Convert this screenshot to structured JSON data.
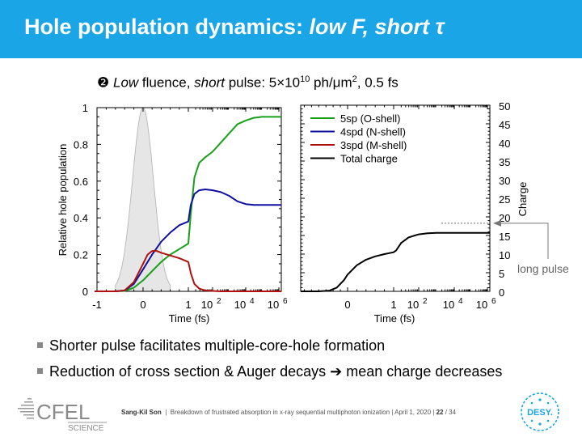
{
  "slide": {
    "title_main": "Hole population dynamics: ",
    "title_italic": "low F, short τ",
    "subtitle": {
      "marker": "❷",
      "low": "Low",
      "part1": " fluence, ",
      "short": "short",
      "part2": " pulse: 5×10",
      "exp": "10",
      "part3": " ph/μm",
      "exp2": "2",
      "part4": ", 0.5 fs"
    },
    "bullets": [
      "Shorter pulse facilitates multiple-core-hole formation",
      "Reduction of cross section & Auger decays ➔ mean charge decreases"
    ],
    "annotation": "long pulse",
    "footer": {
      "author": "Sang-Kil Son",
      "talk": "Breakdown of frustrated absorption in x-ray sequential multiphoton ionization",
      "date": "April 1, 2020",
      "page": "22",
      "total": "34"
    },
    "logos": {
      "cfel": "CFEL",
      "science": "SCIENCE",
      "desy": "DESY."
    }
  },
  "chart_data": [
    {
      "type": "line",
      "ylabel": "Relative hole population",
      "xlabel": "Time (fs)",
      "ylim": [
        0,
        1
      ],
      "yticks": [
        "0",
        "0.2",
        "0.4",
        "0.6",
        "0.8",
        "1"
      ],
      "xticks": [
        "-1",
        "0",
        "1",
        "10",
        "10",
        "10"
      ],
      "xtick_exps": [
        "",
        "",
        "",
        "2",
        "4",
        "6"
      ],
      "pulse": "grey shaded gaussian centered at t = 0",
      "series": [
        {
          "name": "5sp (O-shell)",
          "color": "#18a018",
          "x": [
            -1.05,
            -0.8,
            -0.6,
            -0.4,
            -0.2,
            0,
            0.2,
            0.4,
            0.6,
            0.8,
            1,
            1.1,
            1.25,
            1.45,
            1.7,
            2,
            2.5,
            3,
            3.5,
            4,
            4.5,
            5,
            5.5,
            6,
            6.3
          ],
          "y": [
            0,
            0,
            0,
            0.002,
            0.02,
            0.06,
            0.11,
            0.16,
            0.2,
            0.23,
            0.26,
            0.42,
            0.62,
            0.7,
            0.73,
            0.76,
            0.81,
            0.86,
            0.91,
            0.93,
            0.945,
            0.95,
            0.95,
            0.95,
            0.95
          ]
        },
        {
          "name": "4spd (N-shell)",
          "color": "#1010a0",
          "x": [
            -1.05,
            -0.8,
            -0.6,
            -0.4,
            -0.2,
            0,
            0.2,
            0.4,
            0.6,
            0.8,
            1,
            1.1,
            1.25,
            1.45,
            1.7,
            2,
            2.5,
            3,
            3.5,
            4,
            4.5,
            5,
            5.5,
            6,
            6.3
          ],
          "y": [
            0,
            0,
            0,
            0.005,
            0.04,
            0.12,
            0.2,
            0.27,
            0.32,
            0.36,
            0.38,
            0.47,
            0.53,
            0.55,
            0.555,
            0.55,
            0.54,
            0.52,
            0.49,
            0.475,
            0.47,
            0.47,
            0.47,
            0.47,
            0.47
          ]
        },
        {
          "name": "3spd (M-shell)",
          "color": "#b01010",
          "x": [
            -1.05,
            -0.8,
            -0.6,
            -0.4,
            -0.2,
            0,
            0.1,
            0.2,
            0.3,
            0.4,
            0.6,
            0.8,
            1,
            1.1,
            1.25,
            1.45,
            1.7,
            2,
            2.5,
            3,
            4,
            5,
            6,
            6.3
          ],
          "y": [
            0,
            0,
            0,
            0.005,
            0.05,
            0.15,
            0.2,
            0.22,
            0.22,
            0.21,
            0.195,
            0.18,
            0.16,
            0.1,
            0.04,
            0.015,
            0.005,
            0.002,
            0,
            0,
            0,
            0,
            0,
            0
          ]
        },
        {
          "name": "Total charge",
          "color": "#000000",
          "axis": "right"
        }
      ]
    },
    {
      "type": "line",
      "ylabel": "Charge",
      "xlabel": "Time (fs)",
      "ylim": [
        0,
        50
      ],
      "yticks": [
        "0",
        "5",
        "10",
        "15",
        "20",
        "25",
        "30",
        "35",
        "40",
        "45",
        "50"
      ],
      "xticks": [
        "0",
        "1",
        "10",
        "10",
        "10"
      ],
      "xtick_exps": [
        "",
        "",
        "2",
        "4",
        "6"
      ],
      "series": [
        {
          "name": "Total charge",
          "color": "#000000",
          "x": [
            -1.3,
            -0.8,
            -0.5,
            -0.3,
            -0.1,
            0,
            0.2,
            0.4,
            0.6,
            0.8,
            1,
            1.1,
            1.3,
            1.6,
            2,
            2.5,
            3,
            3.5,
            4,
            5,
            6,
            6.4
          ],
          "y": [
            0,
            0,
            0.2,
            1,
            3,
            4.5,
            7,
            8.5,
            9.4,
            10,
            10.5,
            11,
            13,
            14.5,
            15.3,
            15.6,
            15.7,
            15.7,
            15.7,
            15.7,
            15.7,
            15.7
          ]
        }
      ]
    }
  ]
}
